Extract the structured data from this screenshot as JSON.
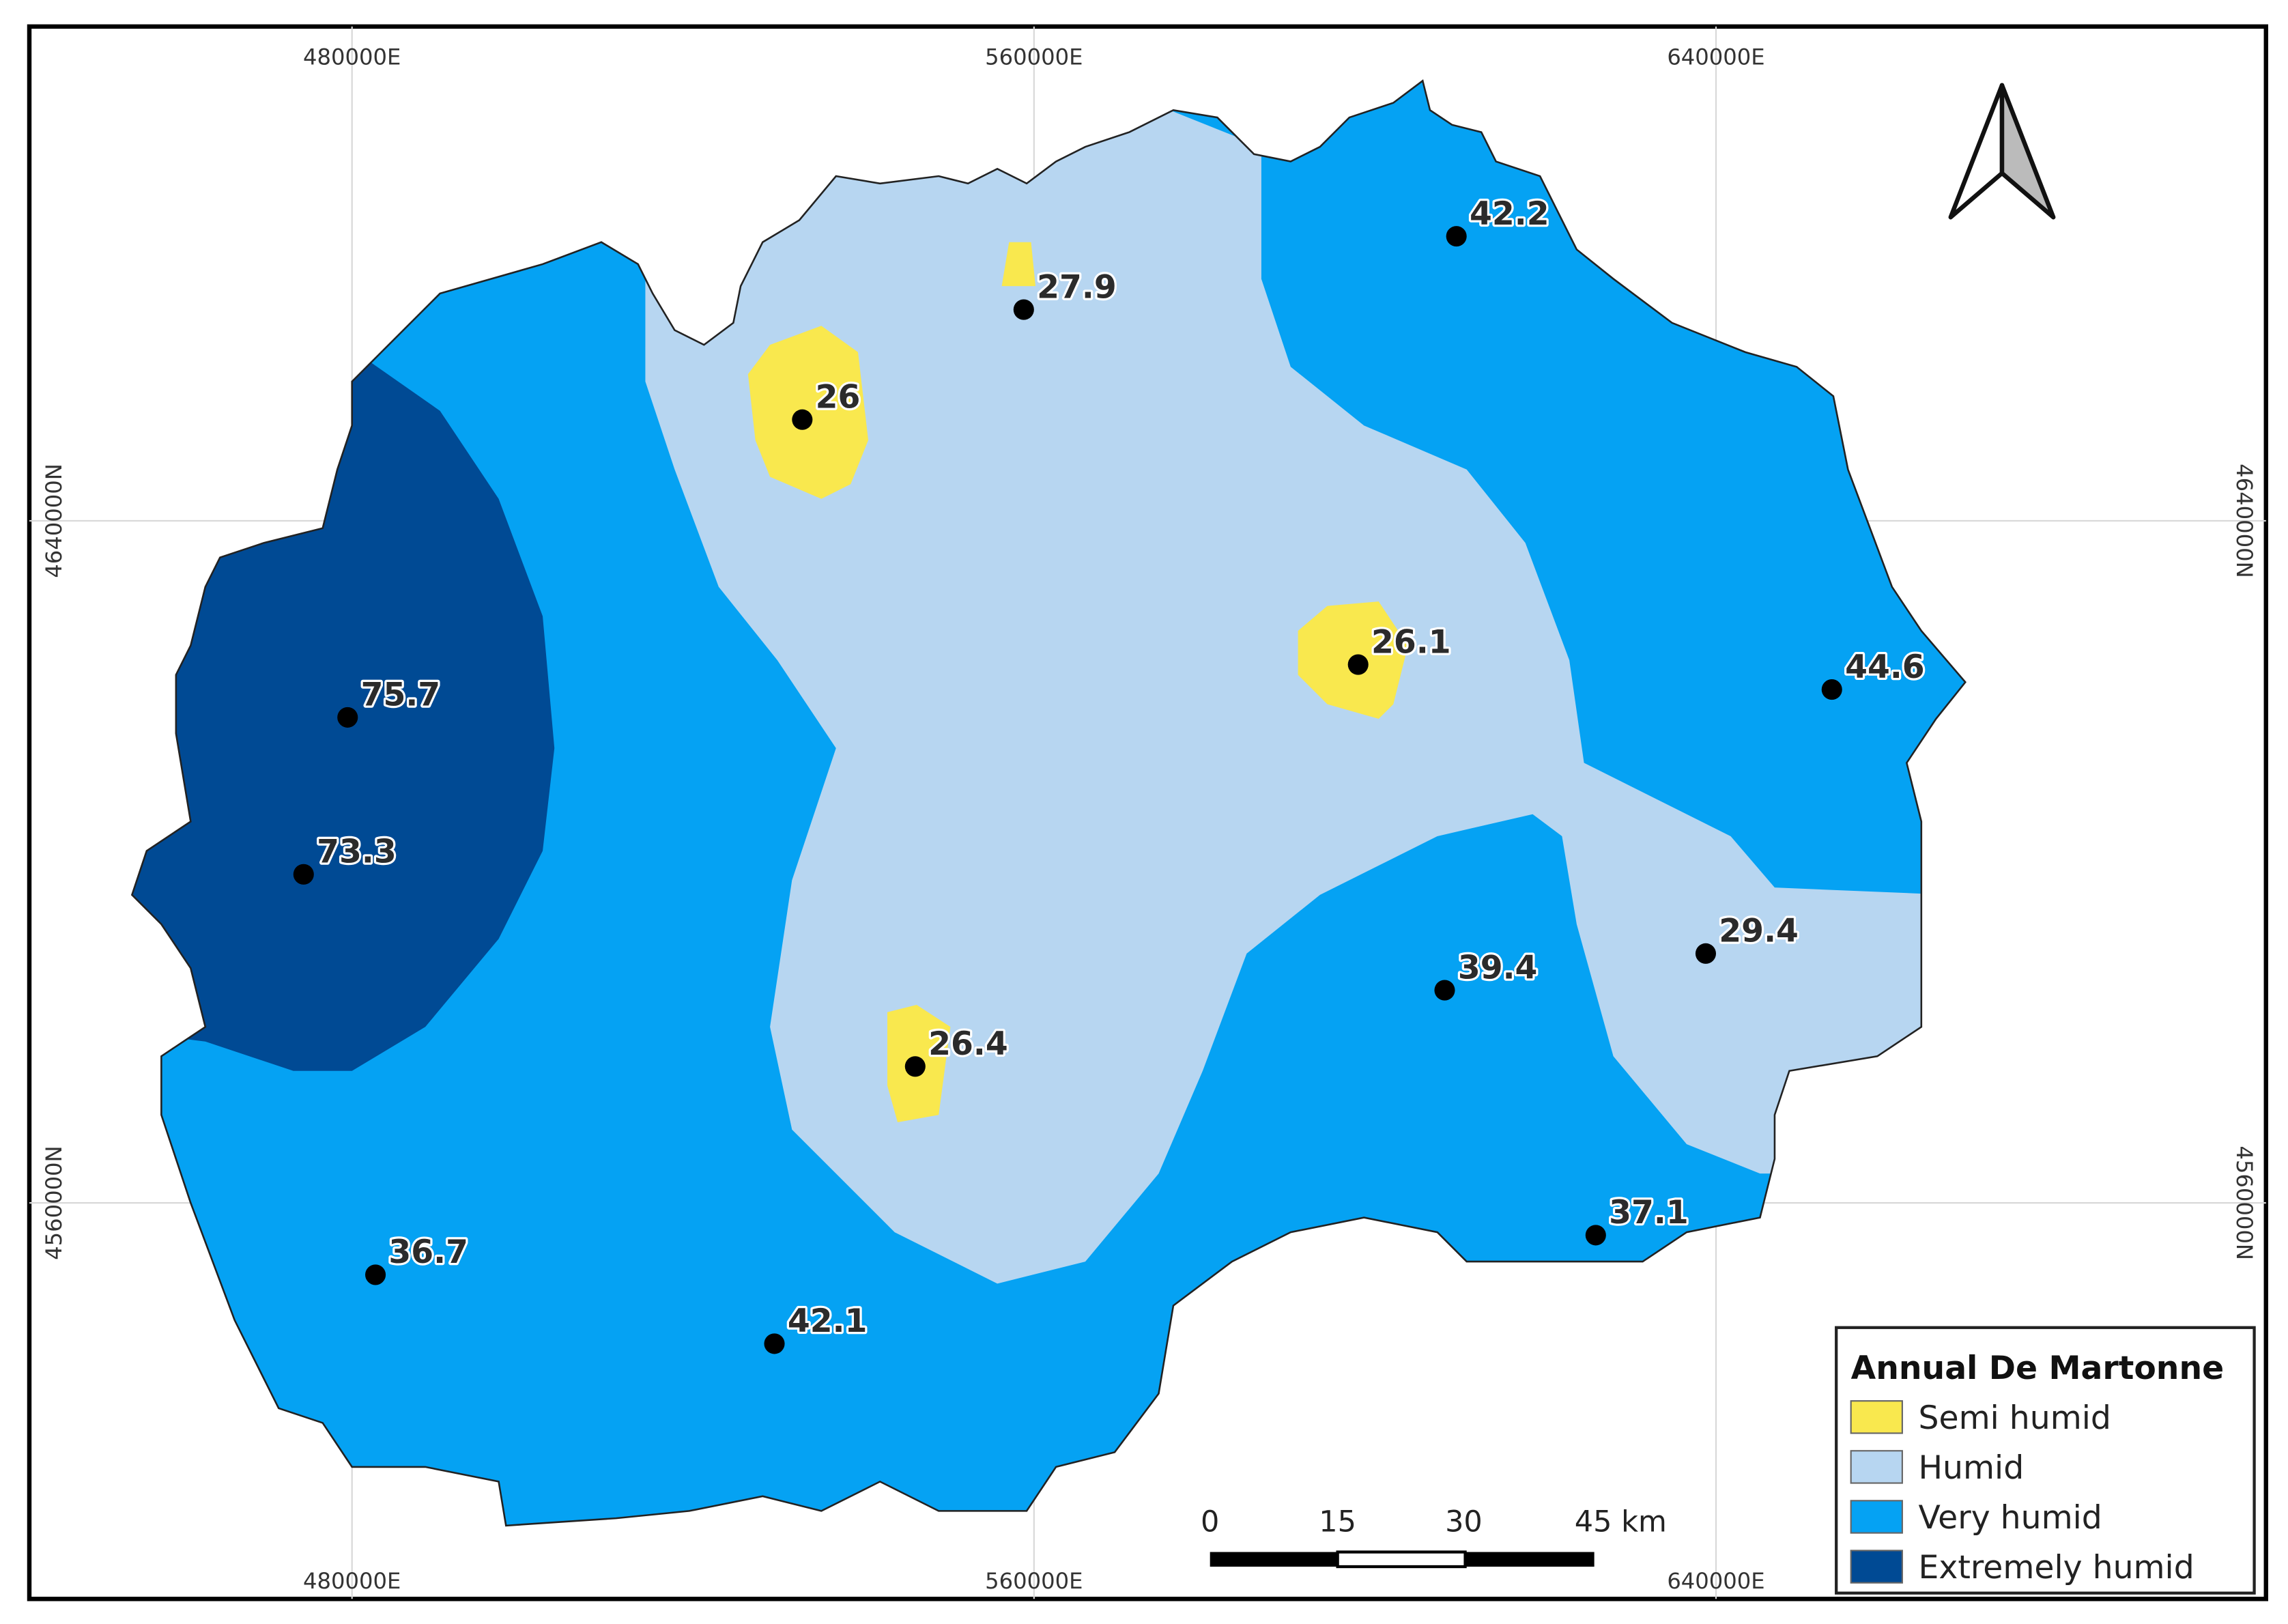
{
  "grid_labels": {
    "top": [
      "480000E",
      "560000E",
      "640000E"
    ],
    "bottom": [
      "480000E",
      "560000E",
      "640000E"
    ],
    "left": [
      "4640000N",
      "4560000N"
    ],
    "right": [
      "4640000N",
      "4560000N"
    ]
  },
  "stations": [
    42.2,
    27.9,
    26,
    26.1,
    44.6,
    75.7,
    73.3,
    29.4,
    39.4,
    26.4,
    37.1,
    36.7,
    42.1
  ],
  "scale_bar": {
    "labels": [
      "0",
      "15",
      "30",
      "45 km"
    ]
  },
  "legend": {
    "title": "Annual De Martonne",
    "items": [
      "Semi humid",
      "Humid",
      "Very humid",
      "Extremely humid"
    ]
  }
}
